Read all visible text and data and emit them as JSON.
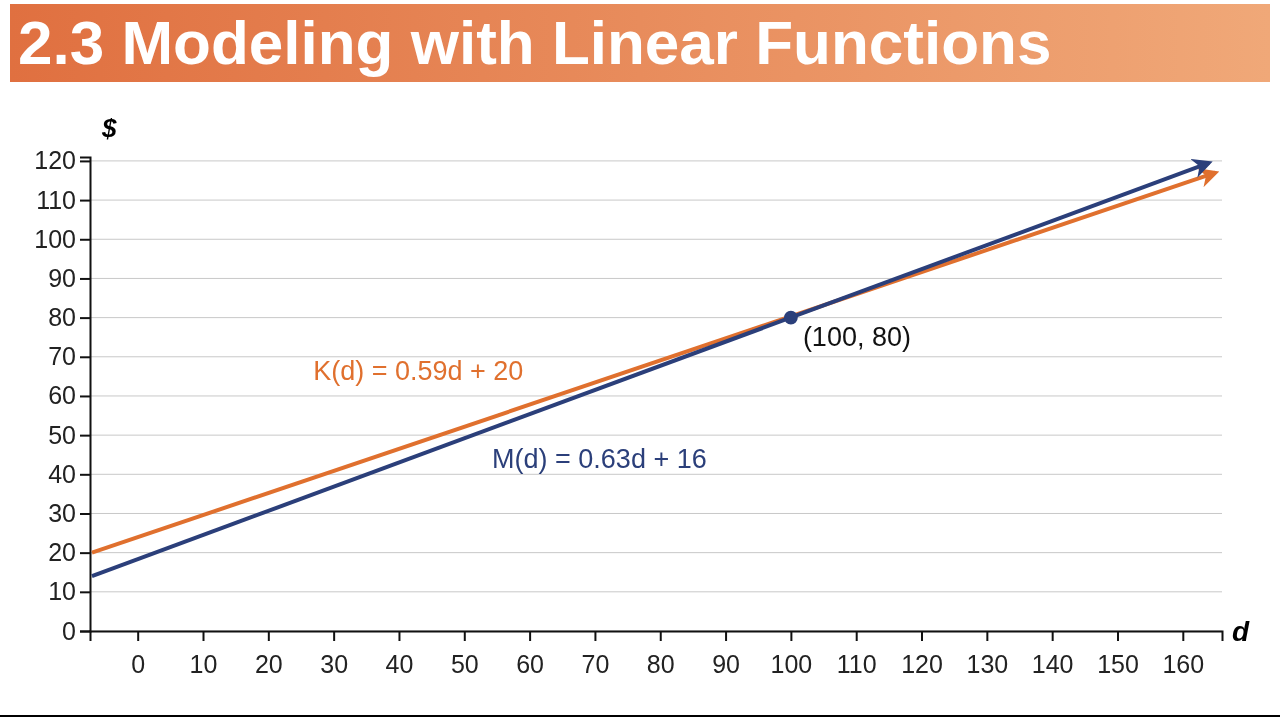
{
  "chart_data": {
    "type": "line",
    "title": "2.3 Modeling with Linear Functions",
    "xlabel": "d",
    "ylabel": "$",
    "xlim": [
      -7.3,
      166
    ],
    "ylim": [
      0,
      121
    ],
    "xticks": [
      0,
      10,
      20,
      30,
      40,
      50,
      60,
      70,
      80,
      90,
      100,
      110,
      120,
      130,
      140,
      150,
      160
    ],
    "yticks": [
      0,
      10,
      20,
      30,
      40,
      50,
      60,
      70,
      80,
      90,
      100,
      110,
      120
    ],
    "grid": "y",
    "series": [
      {
        "name": "K(d) = 0.59d + 20",
        "color": "#e0702e",
        "x": [
          -7,
          165
        ],
        "values": [
          20,
          117
        ],
        "marker": "none"
      },
      {
        "name": "M(d) = 0.63d + 16",
        "color": "#2b3f7a",
        "x": [
          -7,
          164
        ],
        "values": [
          14,
          119.5
        ],
        "marker": "none"
      },
      {
        "type": "scatter",
        "color": "#2b3f7a",
        "x": [
          100
        ],
        "values": [
          80
        ],
        "marker": "circle"
      }
    ],
    "annotations": [
      {
        "text": "(100, 80)",
        "x": 100,
        "y": 80
      }
    ]
  }
}
